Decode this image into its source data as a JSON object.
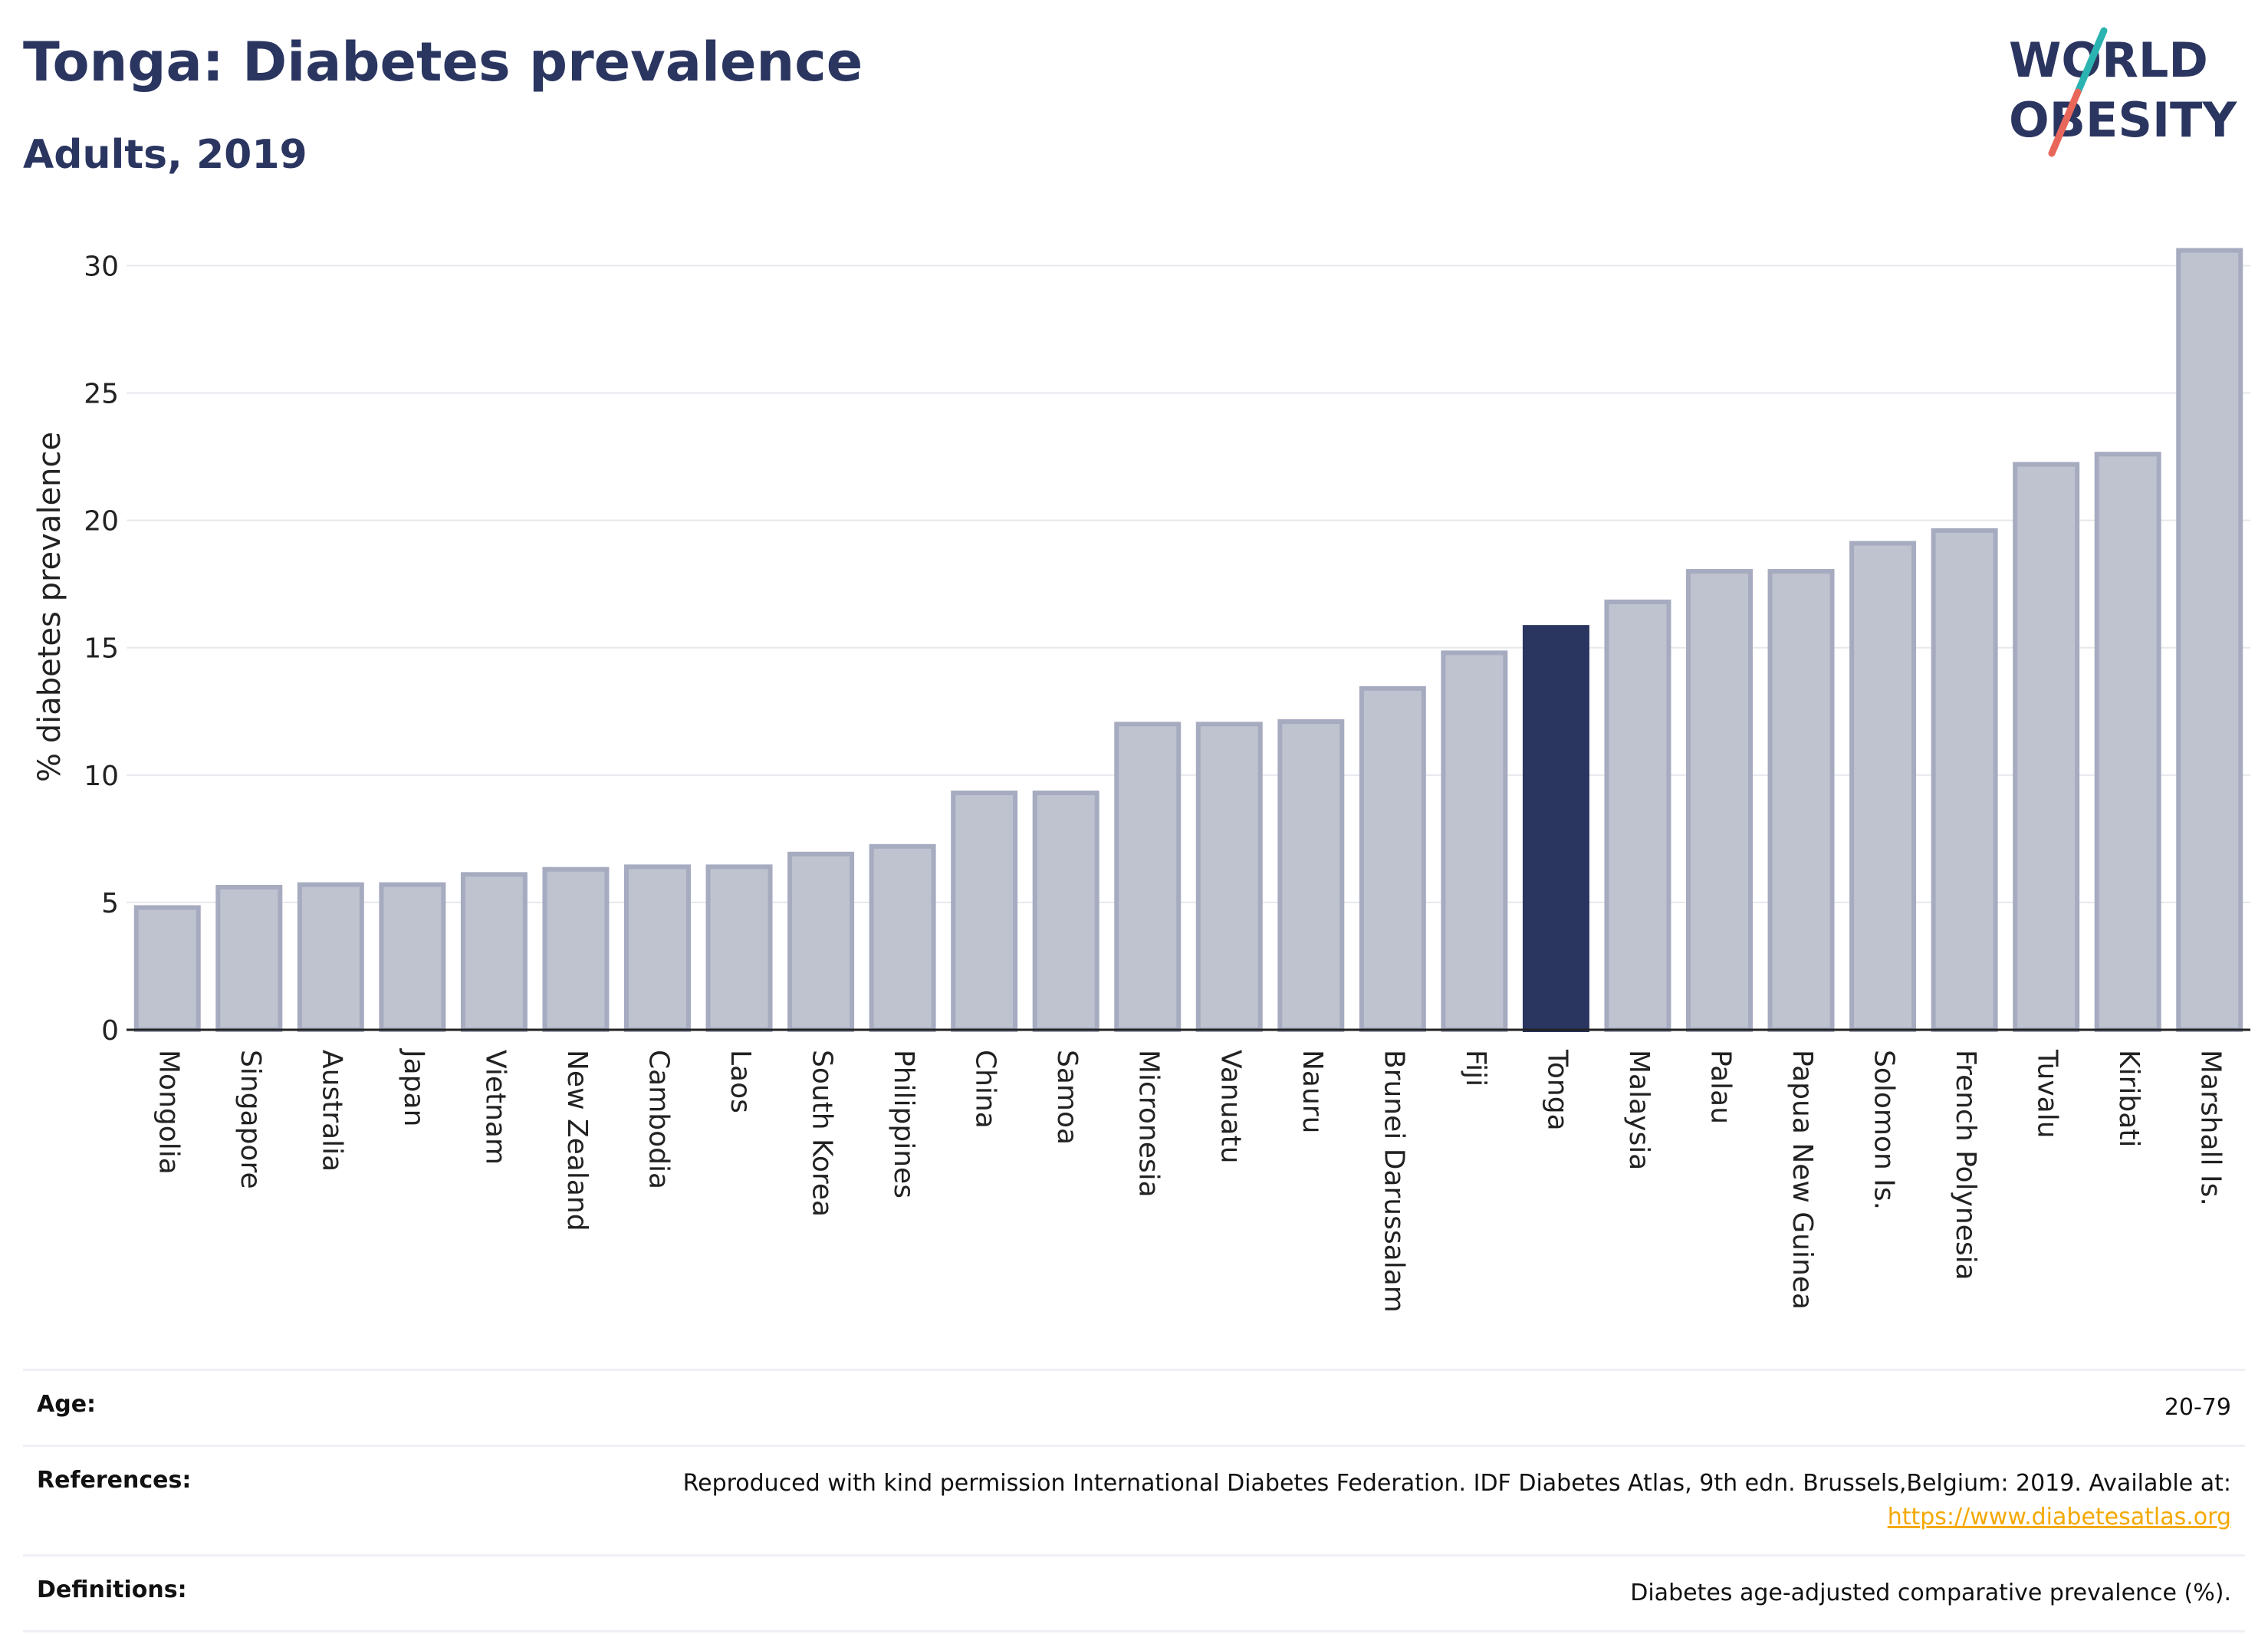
{
  "header": {
    "title": "Tonga: Diabetes prevalence",
    "subtitle": "Adults, 2019"
  },
  "logo": {
    "line1": "WORLD",
    "line2": "OBESITY",
    "accent_colors": [
      "#2bb3b1",
      "#e8675a"
    ]
  },
  "colors": {
    "bar_default": "#bfc3d0",
    "bar_default_stroke": "#a6abc0",
    "bar_highlight": "#2a3560",
    "text_dark": "#2a3560",
    "link": "#f5a800"
  },
  "chart_data": {
    "type": "bar",
    "categories": [
      "Mongolia",
      "Singapore",
      "Australia",
      "Japan",
      "Vietnam",
      "New Zealand",
      "Cambodia",
      "Laos",
      "South Korea",
      "Philippines",
      "China",
      "Samoa",
      "Micronesia",
      "Vanuatu",
      "Nauru",
      "Brunei Darussalam",
      "Fiji",
      "Tonga",
      "Malaysia",
      "Palau",
      "Papua New Guinea",
      "Solomon Is.",
      "French Polynesia",
      "Tuvalu",
      "Kiribati",
      "Marshall Is."
    ],
    "values": [
      4.8,
      5.6,
      5.7,
      5.7,
      6.1,
      6.3,
      6.4,
      6.4,
      6.9,
      7.2,
      9.3,
      9.3,
      12.0,
      12.0,
      12.1,
      13.4,
      14.8,
      15.8,
      16.8,
      18.0,
      18.0,
      19.1,
      19.6,
      22.2,
      22.6,
      30.6
    ],
    "highlight": "Tonga",
    "ylabel": "% diabetes prevalence",
    "xlabel": "",
    "ylim": [
      0,
      32
    ],
    "yticks": [
      0,
      5,
      10,
      15,
      20,
      25,
      30
    ],
    "grid": true
  },
  "info": {
    "rows": [
      {
        "label": "Age:",
        "value": "20-79"
      },
      {
        "label": "References:",
        "value": "Reproduced with kind permission International Diabetes Federation. IDF Diabetes Atlas, 9th edn. Brussels,Belgium: 2019. Available at:",
        "link": "https://www.diabetesatlas.org"
      },
      {
        "label": "Definitions:",
        "value": "Diabetes age-adjusted comparative prevalence (%)."
      }
    ]
  }
}
